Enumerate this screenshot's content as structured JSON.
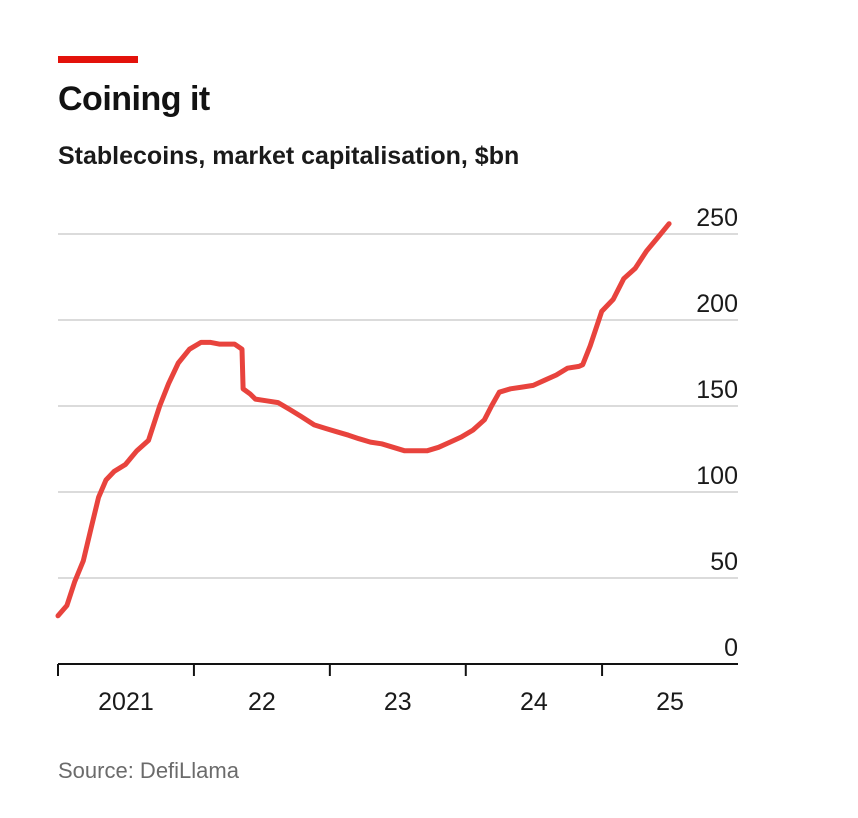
{
  "header": {
    "title": "Coining it",
    "subtitle": "Stablecoins, market capitalisation, $bn"
  },
  "footer": {
    "source": "Source: DefiLlama"
  },
  "colors": {
    "accent": "#e3120b",
    "line": "#e8433d",
    "grid": "#cfcfcf",
    "axis": "#121212"
  },
  "chart_data": {
    "type": "line",
    "title": "Coining it",
    "subtitle": "Stablecoins, market capitalisation, $bn",
    "xlabel": "",
    "ylabel": "",
    "ylim": [
      0,
      250
    ],
    "xlim": [
      "2021-01-01",
      "2026-01-01"
    ],
    "grid": true,
    "yaxis_position": "right",
    "y_ticks": [
      0,
      50,
      100,
      150,
      200,
      250
    ],
    "y_tick_labels": [
      "0",
      "50",
      "100",
      "150",
      "200",
      "250"
    ],
    "x_ticks": [
      "2021-01-01",
      "2022-01-01",
      "2023-01-01",
      "2024-01-01",
      "2025-01-01"
    ],
    "x_tick_labels": [
      "2021",
      "22",
      "23",
      "24",
      "25"
    ],
    "series": [
      {
        "name": "",
        "x": [
          "2021-01-01",
          "2021-01-25",
          "2021-02-15",
          "2021-03-10",
          "2021-04-01",
          "2021-04-20",
          "2021-05-10",
          "2021-06-01",
          "2021-07-01",
          "2021-08-01",
          "2021-09-01",
          "2021-10-01",
          "2021-10-25",
          "2021-11-20",
          "2021-12-20",
          "2022-01-20",
          "2022-02-15",
          "2022-03-10",
          "2022-04-20",
          "2022-05-10",
          "2022-05-13",
          "2022-06-01",
          "2022-06-15",
          "2022-07-15",
          "2022-08-15",
          "2022-09-15",
          "2022-10-15",
          "2022-11-20",
          "2022-12-20",
          "2023-01-20",
          "2023-02-20",
          "2023-03-20",
          "2023-04-20",
          "2023-05-20",
          "2023-06-20",
          "2023-07-20",
          "2023-08-20",
          "2023-09-20",
          "2023-10-20",
          "2023-11-20",
          "2023-12-20",
          "2024-01-20",
          "2024-02-20",
          "2024-03-10",
          "2024-03-31",
          "2024-04-30",
          "2024-05-31",
          "2024-06-30",
          "2024-07-31",
          "2024-08-31",
          "2024-09-30",
          "2024-10-31",
          "2024-11-10",
          "2024-11-30",
          "2024-12-31",
          "2025-01-31",
          "2025-02-28",
          "2025-03-31",
          "2025-04-30",
          "2025-05-31",
          "2025-06-30"
        ],
        "values": [
          28,
          34,
          48,
          60,
          80,
          97,
          107,
          112,
          116,
          124,
          130,
          150,
          163,
          175,
          183,
          187,
          187,
          186,
          186,
          183,
          160,
          157,
          154,
          153,
          152,
          148,
          144,
          139,
          137,
          135,
          133,
          131,
          129,
          128,
          126,
          124,
          124,
          124,
          126,
          129,
          132,
          136,
          142,
          150,
          158,
          160,
          161,
          162,
          165,
          168,
          172,
          173,
          174,
          185,
          205,
          212,
          224,
          230,
          240,
          248,
          256
        ]
      }
    ]
  }
}
